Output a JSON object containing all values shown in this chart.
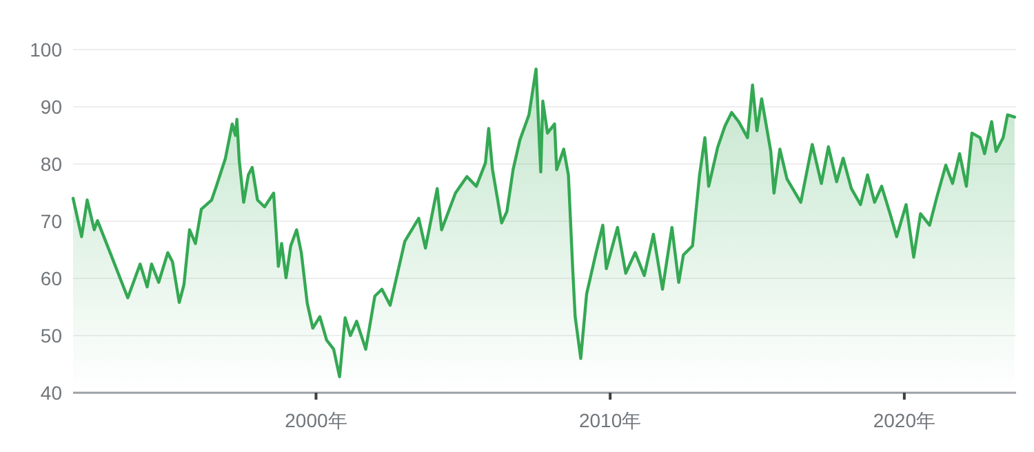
{
  "chart_data": {
    "type": "area",
    "color": "#34a853",
    "grid": "y",
    "xlim": [
      1991.74,
      2023.8
    ],
    "ylim": [
      40,
      100
    ],
    "xticks": [
      {
        "value": 2000,
        "label": "2000年"
      },
      {
        "value": 2010,
        "label": "2010年"
      },
      {
        "value": 2020,
        "label": "2020年"
      }
    ],
    "yticks": [
      40,
      50,
      60,
      70,
      80,
      90,
      100
    ],
    "x": [
      1991.74,
      1992.03,
      1992.22,
      1992.46,
      1992.57,
      1993.0,
      1993.6,
      1994.02,
      1994.26,
      1994.41,
      1994.65,
      1994.96,
      1995.12,
      1995.35,
      1995.51,
      1995.7,
      1995.9,
      1996.1,
      1996.45,
      1996.61,
      1996.92,
      1997.15,
      1997.26,
      1997.31,
      1997.39,
      1997.54,
      1997.7,
      1997.83,
      1998.01,
      1998.25,
      1998.56,
      1998.72,
      1998.83,
      1998.98,
      1999.14,
      1999.34,
      1999.5,
      1999.7,
      1999.89,
      2000.13,
      2000.36,
      2000.6,
      2000.8,
      2000.99,
      2001.17,
      2001.38,
      2001.69,
      2002.0,
      2002.24,
      2002.52,
      2003.02,
      2003.49,
      2003.72,
      2004.12,
      2004.27,
      2004.74,
      2005.13,
      2005.45,
      2005.76,
      2005.87,
      2006.0,
      2006.31,
      2006.49,
      2006.7,
      2006.93,
      2007.24,
      2007.48,
      2007.64,
      2007.71,
      2007.87,
      2008.11,
      2008.18,
      2008.42,
      2008.58,
      2008.73,
      2008.81,
      2009.0,
      2009.2,
      2009.52,
      2009.75,
      2009.87,
      2010.25,
      2010.53,
      2010.85,
      2011.16,
      2011.47,
      2011.78,
      2012.1,
      2012.33,
      2012.49,
      2012.8,
      2013.04,
      2013.22,
      2013.35,
      2013.66,
      2013.9,
      2014.13,
      2014.37,
      2014.67,
      2014.84,
      2014.99,
      2015.15,
      2015.46,
      2015.57,
      2015.77,
      2016.01,
      2016.48,
      2016.87,
      2017.18,
      2017.42,
      2017.7,
      2017.92,
      2018.2,
      2018.51,
      2018.75,
      2018.99,
      2019.23,
      2019.54,
      2019.74,
      2020.06,
      2020.32,
      2020.55,
      2020.86,
      2021.1,
      2021.41,
      2021.64,
      2021.88,
      2022.11,
      2022.3,
      2022.58,
      2022.73,
      2022.97,
      2023.12,
      2023.36,
      2023.51,
      2023.75
    ],
    "values": [
      74.0,
      67.3,
      73.7,
      68.5,
      70.1,
      64.5,
      56.6,
      62.5,
      58.5,
      62.5,
      59.3,
      64.5,
      62.9,
      55.8,
      58.9,
      68.5,
      66.1,
      72.1,
      73.7,
      76.1,
      81.0,
      87.0,
      85.0,
      87.8,
      80.6,
      73.3,
      78.1,
      79.4,
      73.7,
      72.5,
      74.9,
      62.1,
      66.1,
      60.1,
      65.7,
      68.5,
      64.5,
      55.7,
      51.3,
      53.3,
      49.2,
      47.6,
      42.8,
      53.1,
      50.0,
      52.5,
      47.6,
      56.9,
      58.1,
      55.3,
      66.5,
      70.5,
      65.3,
      75.7,
      68.5,
      74.9,
      77.8,
      76.1,
      80.2,
      86.2,
      79.0,
      69.7,
      71.7,
      79.0,
      84.2,
      88.6,
      96.6,
      78.6,
      91.0,
      85.4,
      87.0,
      79.0,
      82.6,
      78.1,
      61.3,
      53.3,
      46.0,
      57.3,
      64.5,
      69.3,
      61.7,
      68.9,
      60.9,
      64.5,
      60.5,
      67.7,
      58.1,
      68.9,
      59.3,
      64.1,
      65.7,
      78.1,
      84.6,
      76.1,
      83.0,
      86.6,
      89.0,
      87.4,
      84.6,
      93.8,
      85.8,
      91.4,
      82.2,
      74.9,
      82.6,
      77.4,
      73.3,
      83.4,
      76.6,
      83.0,
      76.9,
      81.0,
      75.7,
      72.9,
      78.1,
      73.3,
      76.1,
      70.9,
      67.3,
      72.9,
      63.7,
      71.3,
      69.3,
      74.1,
      79.8,
      76.6,
      81.8,
      76.1,
      85.4,
      84.6,
      81.8,
      87.4,
      82.2,
      84.6,
      88.6,
      88.2
    ]
  }
}
